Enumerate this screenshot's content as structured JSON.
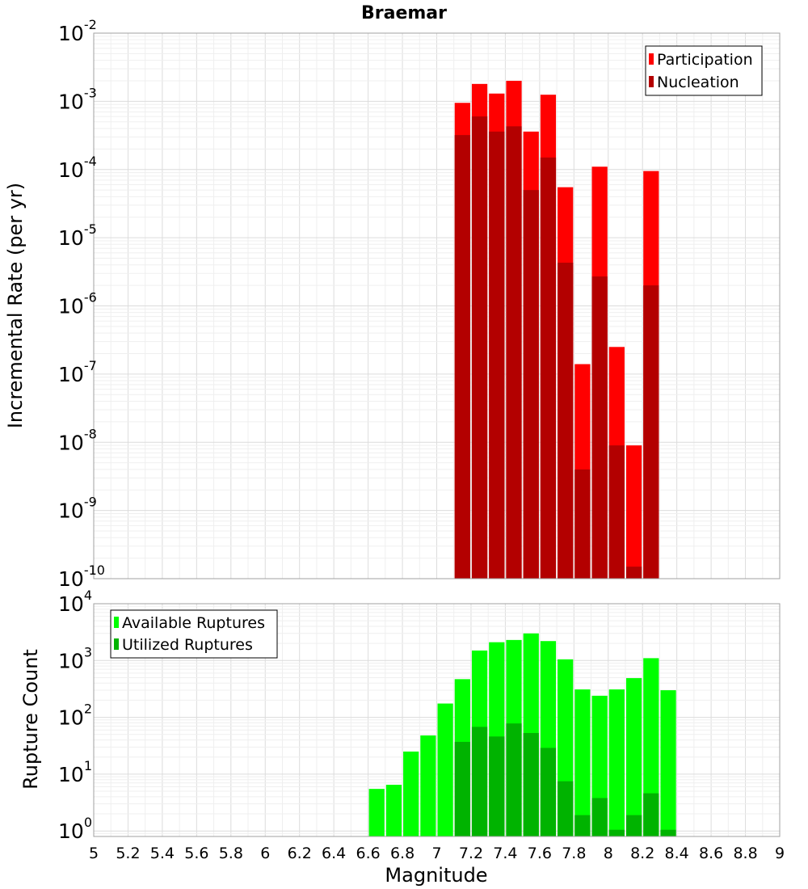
{
  "chart_data": [
    {
      "type": "bar",
      "title": "Braemar",
      "xlabel": "",
      "ylabel": "Incremental Rate (per yr)",
      "yscale": "log",
      "ylim": [
        1e-10,
        0.01
      ],
      "xlim": [
        5,
        9
      ],
      "ytick_labels": [
        {
          "base": "10",
          "exp": "-10"
        },
        {
          "base": "10",
          "exp": "-9"
        },
        {
          "base": "10",
          "exp": "-8"
        },
        {
          "base": "10",
          "exp": "-7"
        },
        {
          "base": "10",
          "exp": "-6"
        },
        {
          "base": "10",
          "exp": "-5"
        },
        {
          "base": "10",
          "exp": "-4"
        },
        {
          "base": "10",
          "exp": "-3"
        },
        {
          "base": "10",
          "exp": "-2"
        }
      ],
      "grid": true,
      "legend_position": "top-right",
      "bin_width": 0.1,
      "x": [
        7.15,
        7.25,
        7.35,
        7.45,
        7.55,
        7.65,
        7.75,
        7.85,
        7.95,
        8.05,
        8.15,
        8.25
      ],
      "series": [
        {
          "name": "Participation",
          "color": "#ff0000",
          "values": [
            0.00095,
            0.0018,
            0.0013,
            0.002,
            0.00036,
            0.00125,
            5.5e-05,
            1.4e-07,
            0.00011,
            2.5e-07,
            9e-09,
            9.5e-05
          ]
        },
        {
          "name": "Nucleation",
          "color": "#b30000",
          "values": [
            0.00032,
            0.0006,
            0.00036,
            0.00043,
            5e-05,
            0.00015,
            4.3e-06,
            4e-09,
            2.7e-06,
            9e-09,
            1.5e-10,
            2e-06
          ]
        }
      ]
    },
    {
      "type": "bar",
      "title": "",
      "xlabel": "Magnitude",
      "ylabel": "Rupture Count",
      "yscale": "log",
      "ylim": [
        0.8,
        10000
      ],
      "xlim": [
        5,
        9
      ],
      "ytick_labels": [
        {
          "base": "10",
          "exp": "0"
        },
        {
          "base": "10",
          "exp": "1"
        },
        {
          "base": "10",
          "exp": "2"
        },
        {
          "base": "10",
          "exp": "3"
        },
        {
          "base": "10",
          "exp": "4"
        }
      ],
      "xticks": [
        "5",
        "5.2",
        "5.4",
        "5.6",
        "5.8",
        "6",
        "6.2",
        "6.4",
        "6.6",
        "6.8",
        "7",
        "7.2",
        "7.4",
        "7.6",
        "7.8",
        "8",
        "8.2",
        "8.4",
        "8.6",
        "8.8",
        "9"
      ],
      "grid": true,
      "legend_position": "top-left",
      "bin_width": 0.1,
      "x": [
        6.65,
        6.75,
        6.85,
        6.95,
        7.05,
        7.15,
        7.25,
        7.35,
        7.45,
        7.55,
        7.65,
        7.75,
        7.85,
        7.95,
        8.05,
        8.15,
        8.25,
        8.35
      ],
      "series": [
        {
          "name": "Available Ruptures",
          "color": "#00ff00",
          "values": [
            5.5,
            6.5,
            25,
            48,
            175,
            470,
            1500,
            2100,
            2300,
            3000,
            2200,
            1050,
            310,
            240,
            310,
            490,
            1100,
            300
          ]
        },
        {
          "name": "Utilized Ruptures",
          "color": "#00b300",
          "values": [
            null,
            null,
            null,
            null,
            null,
            37,
            68,
            46,
            78,
            53,
            29,
            7.5,
            1.9,
            3.8,
            1.05,
            1.9,
            4.6,
            1.05
          ]
        }
      ]
    }
  ]
}
